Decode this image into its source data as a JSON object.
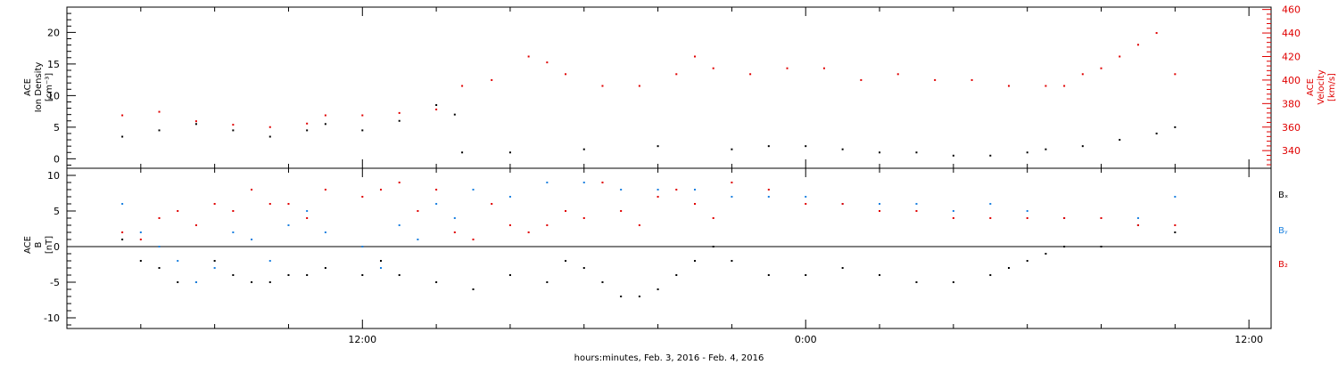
{
  "chart_data": [
    {
      "type": "scatter",
      "panel": "top",
      "left_axis": {
        "lines": [
          "ACE",
          "Ion Density",
          "[cm⁻³]"
        ],
        "ylim": [
          -1.5,
          24
        ],
        "ticks": [
          0,
          5,
          10,
          15,
          20
        ],
        "color": "#000000"
      },
      "right_axis": {
        "lines": [
          "ACE",
          "Velocity",
          "[km/s]"
        ],
        "ylim": [
          325,
          462
        ],
        "ticks": [
          340,
          360,
          380,
          400,
          420,
          440,
          460
        ],
        "color": "#e00000"
      },
      "series": [
        {
          "axis": "left",
          "color": "#000000",
          "x": [
            5.5,
            6.5,
            7.5,
            8.5,
            9.5,
            10.5,
            11,
            12,
            13,
            14,
            14.5,
            14.7,
            16,
            18,
            20,
            22,
            23,
            24,
            25,
            26,
            27,
            28,
            29,
            30,
            30.5,
            31.5,
            32.5,
            33.5,
            34
          ],
          "y": [
            3.5,
            4.5,
            5.5,
            4.5,
            3.5,
            4.5,
            5.5,
            4.5,
            6,
            8.5,
            7,
            1,
            1,
            1.5,
            2,
            1.5,
            2,
            2,
            1.5,
            1,
            1,
            0.5,
            0.5,
            1,
            1.5,
            2,
            3,
            4,
            5
          ]
        },
        {
          "axis": "right",
          "color": "#e00000",
          "x": [
            5.5,
            6.5,
            7.5,
            8.5,
            9.5,
            10.5,
            11,
            12,
            13,
            14,
            14.7,
            15.5,
            16.5,
            17,
            17.5,
            18.5,
            19.5,
            20.5,
            21,
            21.5,
            22.5,
            23.5,
            24.5,
            25.5,
            26.5,
            27.5,
            28.5,
            29.5,
            30.5,
            31,
            31.5,
            32,
            32.5,
            33,
            33.5,
            34
          ],
          "y": [
            370,
            373,
            365,
            362,
            360,
            363,
            370,
            370,
            372,
            375,
            395,
            400,
            420,
            415,
            405,
            395,
            395,
            405,
            420,
            410,
            405,
            410,
            410,
            400,
            405,
            400,
            400,
            395,
            395,
            395,
            405,
            410,
            420,
            430,
            440,
            405
          ]
        }
      ]
    },
    {
      "type": "scatter",
      "panel": "bottom",
      "left_axis": {
        "lines": [
          "ACE",
          "B",
          "[nT]"
        ],
        "ylim": [
          -11.5,
          11
        ],
        "ticks": [
          -10,
          -5,
          0,
          5,
          10
        ],
        "color": "#000000"
      },
      "legend": [
        {
          "text": "Bₓ",
          "color": "#000000"
        },
        {
          "text": "Bᵧ",
          "color": "#1a80e0"
        },
        {
          "text": "B₂",
          "color": "#e00000"
        }
      ],
      "series": [
        {
          "name": "Bₓ",
          "color": "#000000",
          "x": [
            5.5,
            6,
            6.5,
            7,
            7.5,
            8,
            8.5,
            9,
            9.5,
            10,
            10.5,
            11,
            12,
            12.5,
            13,
            14,
            15,
            16,
            17,
            17.5,
            18,
            18.5,
            19,
            19.5,
            20,
            20.5,
            21,
            21.5,
            22,
            23,
            24,
            25,
            26,
            27,
            28,
            29,
            29.5,
            30,
            30.5,
            31,
            32,
            33,
            34
          ],
          "y": [
            1,
            -2,
            -3,
            -5,
            -5,
            -2,
            -4,
            -5,
            -5,
            -4,
            -4,
            -3,
            -4,
            -2,
            -4,
            -5,
            -6,
            -4,
            -5,
            -2,
            -3,
            -5,
            -7,
            -7,
            -6,
            -4,
            -2,
            0,
            -2,
            -4,
            -4,
            -3,
            -4,
            -5,
            -5,
            -4,
            -3,
            -2,
            -1,
            0,
            0,
            3,
            2
          ]
        },
        {
          "name": "Bᵧ",
          "color": "#1a80e0",
          "x": [
            5.5,
            6,
            6.5,
            7,
            7.5,
            8,
            8.5,
            9,
            9.5,
            10,
            10.5,
            11,
            12,
            12.5,
            13,
            13.5,
            14,
            14.5,
            15,
            16,
            17,
            18,
            19,
            20,
            21,
            22,
            23,
            24,
            25,
            26,
            27,
            28,
            29,
            30,
            31,
            32,
            33,
            34
          ],
          "y": [
            6,
            2,
            0,
            -2,
            -5,
            -3,
            2,
            1,
            -2,
            3,
            5,
            2,
            0,
            -3,
            3,
            1,
            6,
            4,
            8,
            7,
            9,
            9,
            8,
            8,
            8,
            7,
            7,
            7,
            6,
            6,
            6,
            5,
            6,
            5,
            4,
            4,
            4,
            7
          ]
        },
        {
          "name": "B₂",
          "color": "#e00000",
          "x": [
            5.5,
            6,
            6.5,
            7,
            7.5,
            8,
            8.5,
            9,
            9.5,
            10,
            10.5,
            11,
            12,
            12.5,
            13,
            13.5,
            14,
            14.5,
            15,
            15.5,
            16,
            16.5,
            17,
            17.5,
            18,
            18.5,
            19,
            19.5,
            20,
            20.5,
            21,
            21.5,
            22,
            23,
            24,
            25,
            26,
            27,
            28,
            29,
            30,
            31,
            32,
            33,
            34
          ],
          "y": [
            2,
            1,
            4,
            5,
            3,
            6,
            5,
            8,
            6,
            6,
            4,
            8,
            7,
            8,
            9,
            5,
            8,
            2,
            1,
            6,
            3,
            2,
            3,
            5,
            4,
            9,
            5,
            3,
            7,
            8,
            6,
            4,
            9,
            8,
            6,
            6,
            5,
            5,
            4,
            4,
            4,
            4,
            4,
            3,
            3
          ]
        }
      ],
      "zero_line": true
    }
  ],
  "x_axis": {
    "range_hours": [
      4.0,
      36.6
    ],
    "tick_labels": [
      {
        "at": 12,
        "label": "12:00"
      },
      {
        "at": 24,
        "label": "0:00"
      },
      {
        "at": 36,
        "label": "12:00"
      }
    ],
    "minor_tick_every_hours": 2,
    "label": "hours:minutes, Feb.  3, 2016  -  Feb.  4, 2016"
  }
}
